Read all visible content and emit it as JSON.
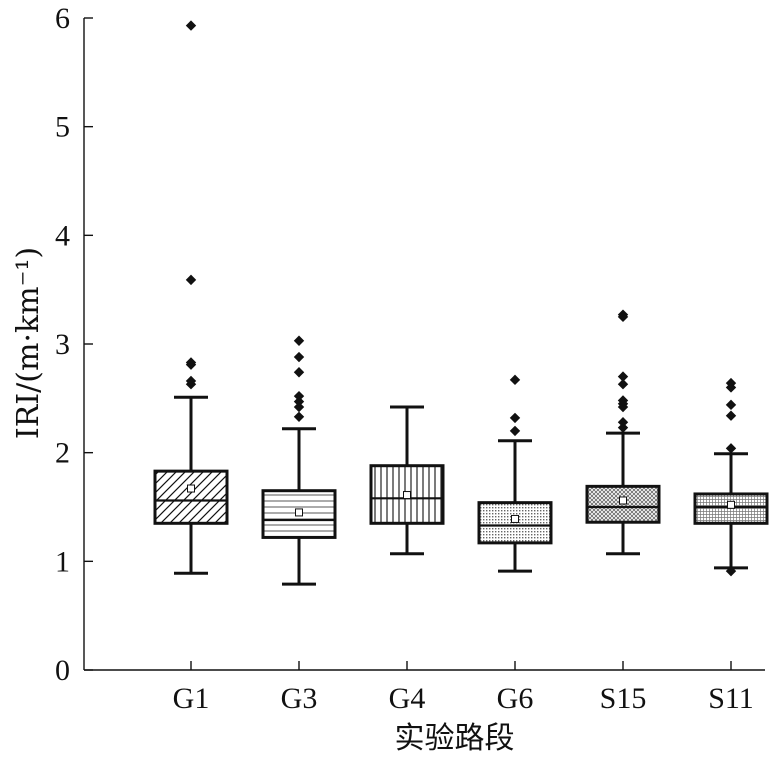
{
  "chart_data": {
    "type": "box",
    "title": "",
    "xlabel": "实验路段",
    "ylabel": "IRI/(m·km⁻¹)",
    "ylim": [
      0,
      6
    ],
    "yticks": [
      0,
      1,
      2,
      3,
      4,
      5,
      6
    ],
    "ytick_labels": [
      "0",
      "1",
      "2",
      "3",
      "4",
      "5",
      "6"
    ],
    "grid": false,
    "legend": "none",
    "categories": [
      "G1",
      "G3",
      "G4",
      "G6",
      "S15",
      "S11"
    ],
    "boxes": [
      {
        "category": "G1",
        "pattern": "diagonal",
        "whisker_low": 0.89,
        "q1": 1.35,
        "median": 1.56,
        "q3": 1.83,
        "whisker_high": 2.51,
        "mean": 1.67,
        "outliers": [
          2.63,
          2.66,
          2.81,
          2.83,
          3.59,
          5.93
        ]
      },
      {
        "category": "G3",
        "pattern": "horizontal",
        "whisker_low": 0.79,
        "q1": 1.22,
        "median": 1.38,
        "q3": 1.65,
        "whisker_high": 2.22,
        "mean": 1.45,
        "outliers": [
          2.33,
          2.42,
          2.47,
          2.52,
          2.74,
          2.88,
          3.03
        ]
      },
      {
        "category": "G4",
        "pattern": "vertical",
        "whisker_low": 1.07,
        "q1": 1.35,
        "median": 1.58,
        "q3": 1.88,
        "whisker_high": 2.42,
        "mean": 1.61,
        "outliers": []
      },
      {
        "category": "G6",
        "pattern": "dots",
        "whisker_low": 0.91,
        "q1": 1.17,
        "median": 1.33,
        "q3": 1.54,
        "whisker_high": 2.11,
        "mean": 1.39,
        "outliers": [
          2.2,
          2.32,
          2.67
        ]
      },
      {
        "category": "S15",
        "pattern": "crosshatch",
        "whisker_low": 1.07,
        "q1": 1.36,
        "median": 1.5,
        "q3": 1.69,
        "whisker_high": 2.18,
        "mean": 1.56,
        "outliers": [
          2.23,
          2.28,
          2.42,
          2.45,
          2.48,
          2.63,
          2.7,
          3.25,
          3.27
        ]
      },
      {
        "category": "S11",
        "pattern": "finegrid",
        "whisker_low": 0.94,
        "q1": 1.35,
        "median": 1.5,
        "q3": 1.62,
        "whisker_high": 1.99,
        "mean": 1.52,
        "outliers": [
          0.91,
          2.04,
          2.34,
          2.44,
          2.6,
          2.64
        ]
      }
    ]
  }
}
